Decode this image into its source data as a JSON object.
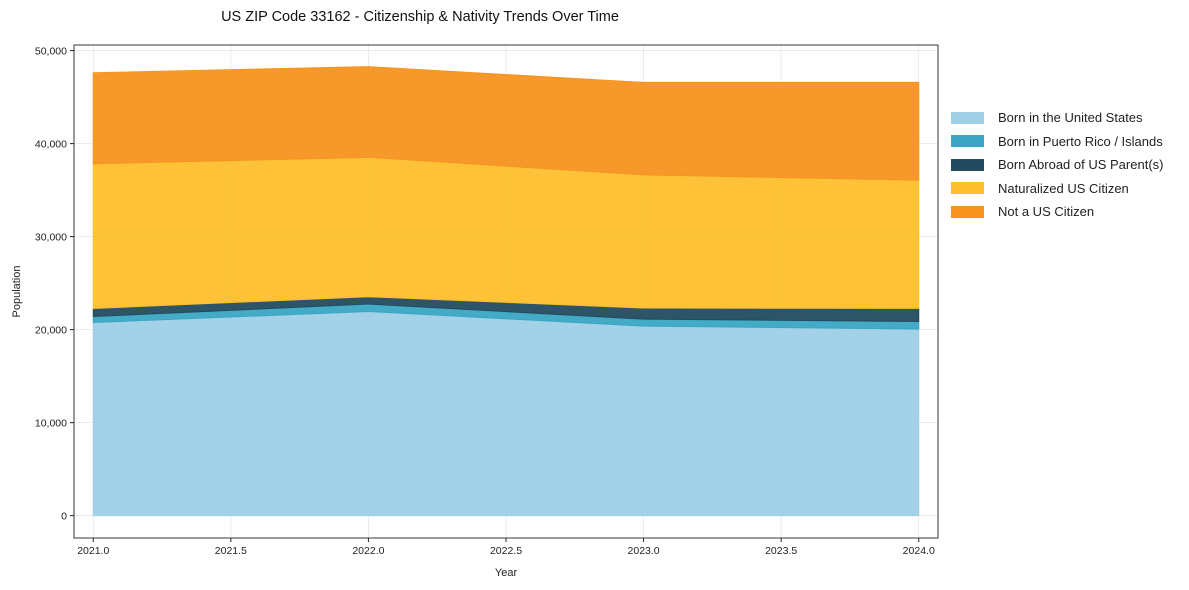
{
  "chart_data": {
    "type": "area",
    "stacked": true,
    "title": "US ZIP Code 33162 - Citizenship & Nativity Trends Over Time",
    "xlabel": "Year",
    "ylabel": "Population",
    "x": [
      2021,
      2022,
      2023,
      2024
    ],
    "xlim": [
      2020.93,
      2024.07
    ],
    "ylim": [
      -2400,
      50600
    ],
    "xticks": [
      "2021.0",
      "2021.5",
      "2022.0",
      "2022.5",
      "2023.0",
      "2023.5",
      "2024.0"
    ],
    "xtick_values": [
      2021,
      2021.5,
      2022,
      2022.5,
      2023,
      2023.5,
      2024
    ],
    "yticks": [
      "0",
      "10,000",
      "20,000",
      "30,000",
      "40,000",
      "50,000"
    ],
    "ytick_values": [
      0,
      10000,
      20000,
      30000,
      40000,
      50000
    ],
    "grid": true,
    "legend_position": "outside-right",
    "series": [
      {
        "name": "Born in the United States",
        "color": "#9ecfe6",
        "values": [
          20770,
          21950,
          20380,
          20060
        ]
      },
      {
        "name": "Born in Puerto Rico / Islands",
        "color": "#3aa6c4",
        "values": [
          640,
          800,
          750,
          820
        ]
      },
      {
        "name": "Born Abroad of US Parent(s)",
        "color": "#234b5f",
        "values": [
          870,
          790,
          1190,
          1400
        ]
      },
      {
        "name": "Naturalized US Citizen",
        "color": "#fdbf2d",
        "values": [
          15550,
          14980,
          14320,
          13790
        ]
      },
      {
        "name": "Not a US Citizen",
        "color": "#f7941f",
        "values": [
          9790,
          9750,
          9940,
          10510
        ]
      }
    ]
  }
}
